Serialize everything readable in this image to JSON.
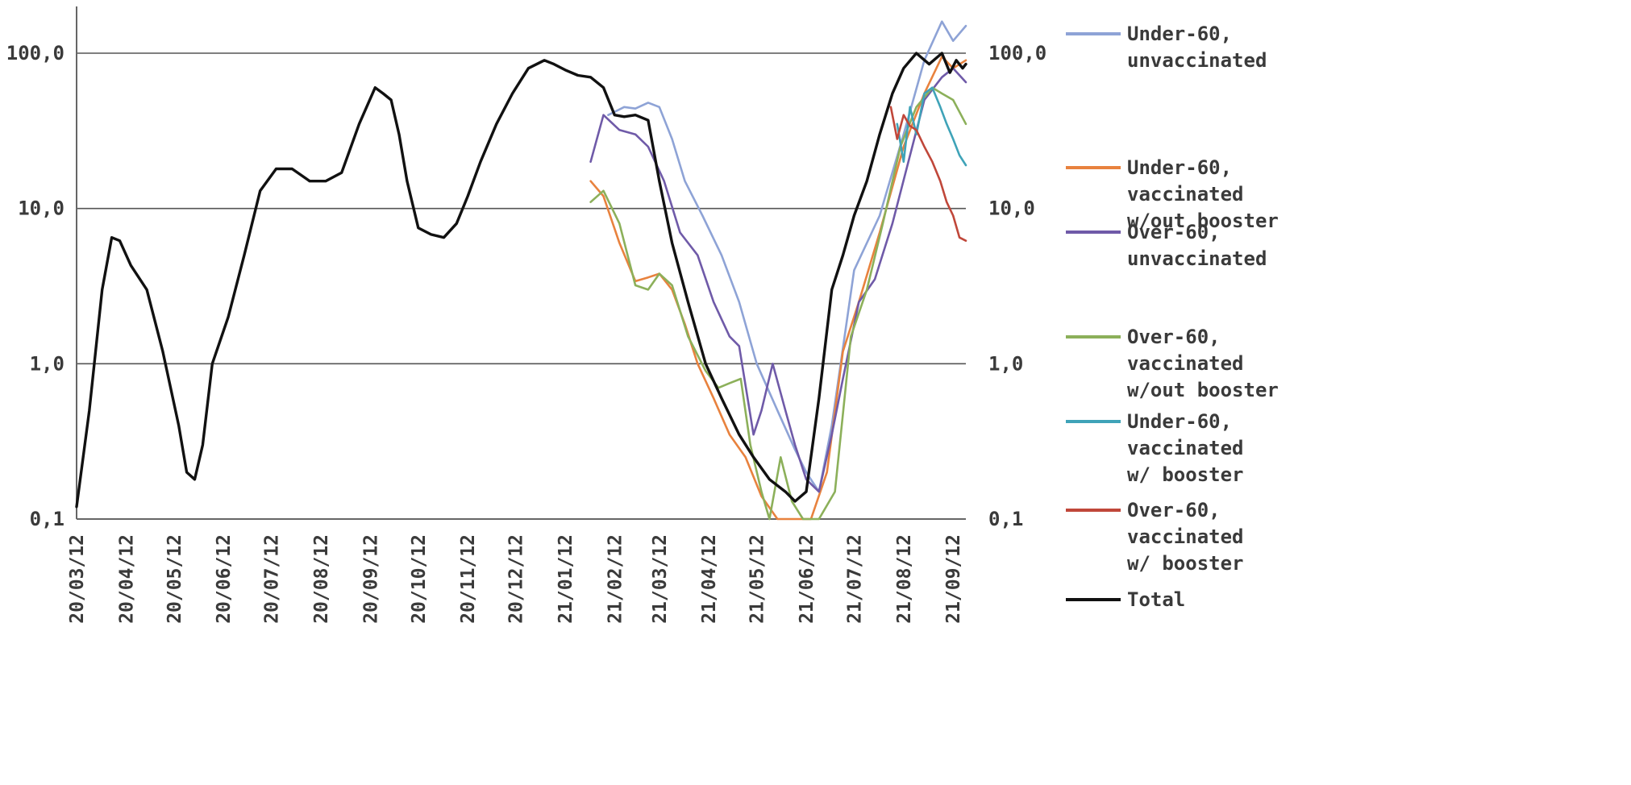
{
  "chart_data": {
    "type": "line",
    "title": "",
    "xlabel": "",
    "ylabel": "",
    "yscale": "log",
    "ylim": [
      0.1,
      200
    ],
    "yticks": [
      0.1,
      1,
      10,
      100
    ],
    "ytick_labels": [
      "0,1",
      "1,0",
      "10,0",
      "100,0"
    ],
    "right_ytick_labels": [
      "0,1",
      "1,0",
      "10,0",
      "100,0"
    ],
    "xlim": [
      "2020-03-12",
      "2021-09-20"
    ],
    "x_tick_dates": [
      "2020-03-12",
      "2020-04-12",
      "2020-05-12",
      "2020-06-12",
      "2020-07-12",
      "2020-08-12",
      "2020-09-12",
      "2020-10-12",
      "2020-11-12",
      "2020-12-12",
      "2021-01-12",
      "2021-02-12",
      "2021-03-12",
      "2021-04-12",
      "2021-05-12",
      "2021-06-12",
      "2021-07-12",
      "2021-08-12",
      "2021-09-12"
    ],
    "x_tick_labels": [
      "20/03/12",
      "20/04/12",
      "20/05/12",
      "20/06/12",
      "20/07/12",
      "20/08/12",
      "20/09/12",
      "20/10/12",
      "20/11/12",
      "20/12/12",
      "21/01/12",
      "21/02/12",
      "21/03/12",
      "21/04/12",
      "21/05/12",
      "21/06/12",
      "21/07/12",
      "21/08/12",
      "21/09/12"
    ],
    "grid": "horizontal",
    "legend_position": "right",
    "series": [
      {
        "name": "Under-60, unvaccinated",
        "color": "#8ea3d6",
        "x": [
          "2021-02-08",
          "2021-02-18",
          "2021-02-25",
          "2021-03-05",
          "2021-03-12",
          "2021-03-20",
          "2021-03-28",
          "2021-04-08",
          "2021-04-20",
          "2021-05-01",
          "2021-05-12",
          "2021-05-25",
          "2021-06-05",
          "2021-06-12",
          "2021-06-20",
          "2021-06-28",
          "2021-07-12",
          "2021-07-28",
          "2021-08-12",
          "2021-08-25",
          "2021-09-05",
          "2021-09-12",
          "2021-09-20"
        ],
        "y": [
          40,
          45,
          44,
          48,
          45,
          28,
          15,
          9,
          5,
          2.5,
          1.0,
          0.5,
          0.28,
          0.2,
          0.15,
          0.4,
          4,
          9,
          30,
          90,
          160,
          120,
          150
        ]
      },
      {
        "name": "Under-60, vaccinated w/out booster",
        "color": "#e8823e",
        "x": [
          "2021-01-28",
          "2021-02-05",
          "2021-02-15",
          "2021-02-25",
          "2021-03-05",
          "2021-03-12",
          "2021-03-20",
          "2021-03-28",
          "2021-04-05",
          "2021-04-15",
          "2021-04-25",
          "2021-05-05",
          "2021-05-15",
          "2021-05-25",
          "2021-06-05",
          "2021-06-15",
          "2021-06-25",
          "2021-07-05",
          "2021-07-15",
          "2021-07-28",
          "2021-08-12",
          "2021-08-25",
          "2021-09-05",
          "2021-09-12",
          "2021-09-20"
        ],
        "y": [
          15,
          12,
          6,
          3.4,
          3.6,
          3.8,
          3.0,
          1.8,
          1.0,
          0.6,
          0.35,
          0.25,
          0.14,
          0.1,
          0.1,
          0.1,
          0.2,
          1.2,
          2.5,
          7,
          25,
          55,
          95,
          80,
          90
        ]
      },
      {
        "name": "Over-60, unvaccinated",
        "color": "#6f5aa8",
        "x": [
          "2021-01-28",
          "2021-02-05",
          "2021-02-15",
          "2021-02-25",
          "2021-03-05",
          "2021-03-15",
          "2021-03-25",
          "2021-04-05",
          "2021-04-15",
          "2021-04-25",
          "2021-05-01",
          "2021-05-10",
          "2021-05-15",
          "2021-05-22",
          "2021-05-30",
          "2021-06-05",
          "2021-06-12",
          "2021-06-20",
          "2021-06-28",
          "2021-07-05",
          "2021-07-15",
          "2021-07-25",
          "2021-08-05",
          "2021-08-15",
          "2021-08-25",
          "2021-09-05",
          "2021-09-12",
          "2021-09-20"
        ],
        "y": [
          20,
          40,
          32,
          30,
          25,
          15,
          7,
          5,
          2.5,
          1.5,
          1.3,
          0.35,
          0.5,
          1.0,
          0.5,
          0.3,
          0.18,
          0.15,
          0.35,
          0.8,
          2.5,
          3.5,
          8,
          20,
          50,
          70,
          80,
          65
        ]
      },
      {
        "name": "Over-60, vaccinated w/out booster",
        "color": "#8cb05a",
        "x": [
          "2021-01-28",
          "2021-02-05",
          "2021-02-15",
          "2021-02-25",
          "2021-03-05",
          "2021-03-12",
          "2021-03-20",
          "2021-03-30",
          "2021-04-10",
          "2021-04-18",
          "2021-04-25",
          "2021-05-02",
          "2021-05-08",
          "2021-05-15",
          "2021-05-20",
          "2021-05-27",
          "2021-06-03",
          "2021-06-10",
          "2021-06-20",
          "2021-06-30",
          "2021-07-10",
          "2021-07-20",
          "2021-07-30",
          "2021-08-10",
          "2021-08-20",
          "2021-08-30",
          "2021-09-05",
          "2021-09-12",
          "2021-09-20"
        ],
        "y": [
          11,
          13,
          8,
          3.2,
          3.0,
          3.8,
          3.2,
          1.5,
          0.9,
          0.7,
          0.75,
          0.8,
          0.3,
          0.15,
          0.1,
          0.25,
          0.13,
          0.1,
          0.1,
          0.15,
          1.5,
          3,
          8,
          25,
          45,
          60,
          55,
          50,
          35
        ]
      },
      {
        "name": "Under-60, vaccinated w/ booster",
        "color": "#3fa3b8",
        "x": [
          "2021-08-08",
          "2021-08-12",
          "2021-08-16",
          "2021-08-20",
          "2021-08-25",
          "2021-08-30",
          "2021-09-04",
          "2021-09-08",
          "2021-09-12",
          "2021-09-16",
          "2021-09-20"
        ],
        "y": [
          35,
          20,
          45,
          30,
          55,
          60,
          45,
          35,
          28,
          22,
          19
        ]
      },
      {
        "name": "Over-60, vaccinated w/ booster",
        "color": "#c0473a",
        "x": [
          "2021-08-04",
          "2021-08-08",
          "2021-08-12",
          "2021-08-16",
          "2021-08-20",
          "2021-08-25",
          "2021-08-30",
          "2021-09-04",
          "2021-09-08",
          "2021-09-12",
          "2021-09-16",
          "2021-09-20"
        ],
        "y": [
          45,
          28,
          40,
          34,
          32,
          25,
          20,
          15,
          11,
          9,
          6.5,
          6.2
        ]
      },
      {
        "name": "Total",
        "color": "#111111",
        "x": [
          "2020-03-12",
          "2020-03-20",
          "2020-03-28",
          "2020-04-03",
          "2020-04-08",
          "2020-04-15",
          "2020-04-25",
          "2020-05-05",
          "2020-05-15",
          "2020-05-20",
          "2020-05-25",
          "2020-05-30",
          "2020-06-05",
          "2020-06-15",
          "2020-06-25",
          "2020-07-05",
          "2020-07-15",
          "2020-07-25",
          "2020-08-05",
          "2020-08-15",
          "2020-08-25",
          "2020-09-05",
          "2020-09-15",
          "2020-09-20",
          "2020-09-25",
          "2020-09-30",
          "2020-10-05",
          "2020-10-12",
          "2020-10-20",
          "2020-10-28",
          "2020-11-05",
          "2020-11-12",
          "2020-11-20",
          "2020-11-30",
          "2020-12-10",
          "2020-12-20",
          "2020-12-30",
          "2021-01-05",
          "2021-01-12",
          "2021-01-20",
          "2021-01-28",
          "2021-02-05",
          "2021-02-12",
          "2021-02-18",
          "2021-02-25",
          "2021-03-05",
          "2021-03-12",
          "2021-03-20",
          "2021-03-30",
          "2021-04-10",
          "2021-04-20",
          "2021-05-01",
          "2021-05-10",
          "2021-05-20",
          "2021-05-30",
          "2021-06-05",
          "2021-06-12",
          "2021-06-20",
          "2021-06-28",
          "2021-07-05",
          "2021-07-12",
          "2021-07-20",
          "2021-07-28",
          "2021-08-05",
          "2021-08-12",
          "2021-08-20",
          "2021-08-28",
          "2021-09-05",
          "2021-09-10",
          "2021-09-14",
          "2021-09-18",
          "2021-09-20"
        ],
        "y": [
          0.12,
          0.5,
          3,
          6.5,
          6.2,
          4.3,
          3,
          1.2,
          0.4,
          0.2,
          0.18,
          0.3,
          1.0,
          2.0,
          5,
          13,
          18,
          18,
          15,
          15,
          17,
          35,
          60,
          55,
          50,
          30,
          15,
          7.5,
          6.8,
          6.5,
          8,
          12,
          20,
          35,
          55,
          80,
          90,
          85,
          78,
          72,
          70,
          60,
          40,
          39,
          40,
          37,
          15,
          6,
          2.5,
          1.0,
          0.6,
          0.35,
          0.25,
          0.18,
          0.15,
          0.13,
          0.15,
          0.6,
          3,
          5,
          9,
          15,
          30,
          55,
          80,
          100,
          85,
          100,
          75,
          90,
          80,
          85
        ]
      }
    ]
  }
}
